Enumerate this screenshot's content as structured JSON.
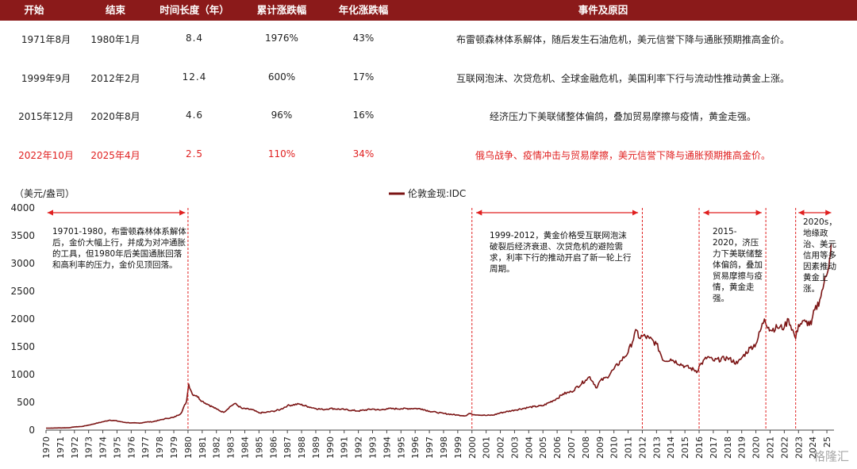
{
  "table": {
    "headers": [
      "开始",
      "结束",
      "时间长度（年）",
      "累计涨跌幅",
      "年化涨跌幅",
      "事件及原因"
    ],
    "rows": [
      {
        "start": "1971年8月",
        "end": "1980年1月",
        "years": "8.4",
        "cum": "1976%",
        "ann": "43%",
        "reason": "布雷顿森林体系解体，随后发生石油危机，美元信誉下降与通胀预期推高金价。",
        "highlight": false
      },
      {
        "start": "1999年9月",
        "end": "2012年2月",
        "years": "12.4",
        "cum": "600%",
        "ann": "17%",
        "reason": "互联网泡沫、次贷危机、全球金融危机，美国利率下行与流动性推动黄金上涨。",
        "highlight": false
      },
      {
        "start": "2015年12月",
        "end": "2020年8月",
        "years": "4.6",
        "cum": "96%",
        "ann": "16%",
        "reason": "经济压力下美联储整体偏鸽，叠加贸易摩擦与疫情，黄金走强。",
        "highlight": false
      },
      {
        "start": "2022年10月",
        "end": "2025年4月",
        "years": "2.5",
        "cum": "110%",
        "ann": "34%",
        "reason": "俄乌战争、疫情冲击与贸易摩擦，美元信誉下降与通胀预期推高金价。",
        "highlight": true
      }
    ]
  },
  "chart_data": {
    "type": "line",
    "ylabel": "（美元/盎司）",
    "legend": "伦敦金现:IDC",
    "legend_position": "top-center",
    "ylim": [
      0,
      4000
    ],
    "yticks": [
      0,
      500,
      1000,
      1500,
      2000,
      2500,
      3000,
      3500,
      4000
    ],
    "xlim": [
      1970,
      2025.5
    ],
    "xticks": [
      "1970",
      "1971",
      "1972",
      "1973",
      "1974",
      "1975",
      "1976",
      "1977",
      "1978",
      "1979",
      "1980",
      "1981",
      "1982",
      "1983",
      "1984",
      "1985",
      "1986",
      "1987",
      "1988",
      "1989",
      "1990",
      "1991",
      "1992",
      "1993",
      "1994",
      "1995",
      "1996",
      "1997",
      "1998",
      "1999",
      "2000",
      "2001",
      "2002",
      "2003",
      "2004",
      "2005",
      "2006",
      "2007",
      "2008",
      "2009",
      "2010",
      "2011",
      "2012",
      "2013",
      "2014",
      "2015",
      "2016",
      "2017",
      "2018",
      "2019",
      "2020",
      "2021",
      "2022",
      "2023",
      "2024",
      "25"
    ],
    "grid": false,
    "series": [
      {
        "name": "伦敦金现:IDC",
        "color": "#7b1414",
        "x": [
          1970,
          1971,
          1971.6,
          1972,
          1972.5,
          1973,
          1973.5,
          1974,
          1974.5,
          1975,
          1975.5,
          1976,
          1976.6,
          1977,
          1977.5,
          1978,
          1978.5,
          1979,
          1979.5,
          1979.9,
          1980.05,
          1980.3,
          1980.6,
          1981,
          1981.5,
          1982,
          1982.5,
          1983,
          1983.3,
          1983.8,
          1984.5,
          1985,
          1985.5,
          1986,
          1986.5,
          1987,
          1987.8,
          1988.5,
          1989,
          1989.5,
          1990,
          1991,
          1992,
          1993,
          1993.5,
          1994,
          1995,
          1996,
          1996.5,
          1997,
          1997.5,
          1998,
          1999,
          1999.6,
          1999.8,
          2000,
          2001,
          2001.5,
          2002,
          2003,
          2004,
          2005,
          2006,
          2006.4,
          2007,
          2008,
          2008.3,
          2008.8,
          2009,
          2009.5,
          2010,
          2010.5,
          2011,
          2011.6,
          2011.8,
          2012,
          2012.5,
          2013,
          2013.5,
          2014,
          2015,
          2015.9,
          2016,
          2016.6,
          2017,
          2018,
          2018.7,
          2019,
          2019.6,
          2020,
          2020.6,
          2020.9,
          2021,
          2021.5,
          2022,
          2022.3,
          2022.8,
          2023,
          2023.5,
          2023.9,
          2024,
          2024.5,
          2024.8,
          2025,
          2025.2,
          2025.3
        ],
        "y": [
          35,
          40,
          42,
          58,
          65,
          90,
          120,
          150,
          180,
          165,
          140,
          130,
          125,
          145,
          150,
          180,
          210,
          230,
          300,
          520,
          830,
          650,
          620,
          520,
          450,
          380,
          320,
          430,
          480,
          390,
          370,
          310,
          320,
          340,
          370,
          440,
          470,
          420,
          390,
          370,
          390,
          370,
          345,
          380,
          360,
          385,
          385,
          390,
          380,
          340,
          320,
          300,
          270,
          260,
          300,
          285,
          265,
          270,
          310,
          360,
          410,
          440,
          570,
          650,
          690,
          900,
          960,
          760,
          880,
          950,
          1100,
          1250,
          1400,
          1800,
          1650,
          1700,
          1650,
          1550,
          1250,
          1280,
          1150,
          1060,
          1150,
          1320,
          1250,
          1300,
          1200,
          1300,
          1480,
          1550,
          2000,
          1850,
          1800,
          1850,
          1850,
          2000,
          1650,
          1900,
          1950,
          1900,
          2050,
          2350,
          2650,
          2800,
          3100,
          3350
        ]
      }
    ],
    "annotations": [
      {
        "period": "1971-1980",
        "text": "19701-1980，布雷顿森林体系解体后，金价大幅上行，并成为对冲通胀的工具，但1980年后美国通胀回落和高利率的压力，金价见顶回落。"
      },
      {
        "period": "1999-2012",
        "text": "1999-2012，黄金价格受互联网泡沫破裂后经济衰退、次贷危机的避险需求，利率下行的推动开启了新一轮上行周期。"
      },
      {
        "period": "2015-2020",
        "text": "2015-2020，济压力下美联储整体偏鸽，叠加贸易摩擦与疫情，黄金走强。"
      },
      {
        "period": "2020s",
        "text": "2020s，地缘政治、美元信用等多因素推动黄金上涨。"
      }
    ],
    "watermark": "格隆汇"
  },
  "colors": {
    "header_bg": "#8b1a1a",
    "highlight": "#e02020",
    "line": "#7b1414",
    "marker": "#e02020"
  }
}
